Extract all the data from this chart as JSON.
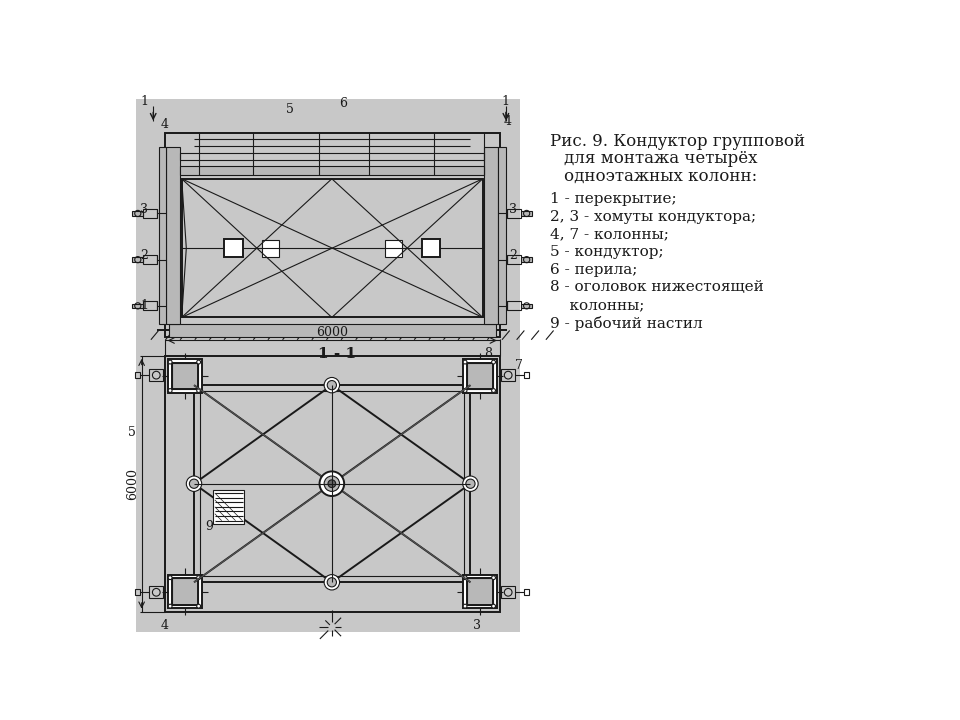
{
  "bg_color": "#c8c8c8",
  "white_bg": "#ffffff",
  "line_color": "#1a1a1a",
  "gray_fill": "#909090",
  "light_gray": "#b8b8b8",
  "title_line1": "Рис. 9. Кондуктор групповой",
  "title_line2": "для монтажа четырёх",
  "title_line3": "одноэтажных колонн:",
  "legend": [
    "1 - перекрытие;",
    "2, 3 - хомуты кондуктора;",
    "4, 7 - колонны;",
    "5 - кондуктор;",
    "6 - перила;",
    "8 - оголовок нижестоящей",
    "    колонны;",
    "9 - рабочий настил"
  ],
  "section_label": "1 - 1",
  "dim_6000": "6000"
}
